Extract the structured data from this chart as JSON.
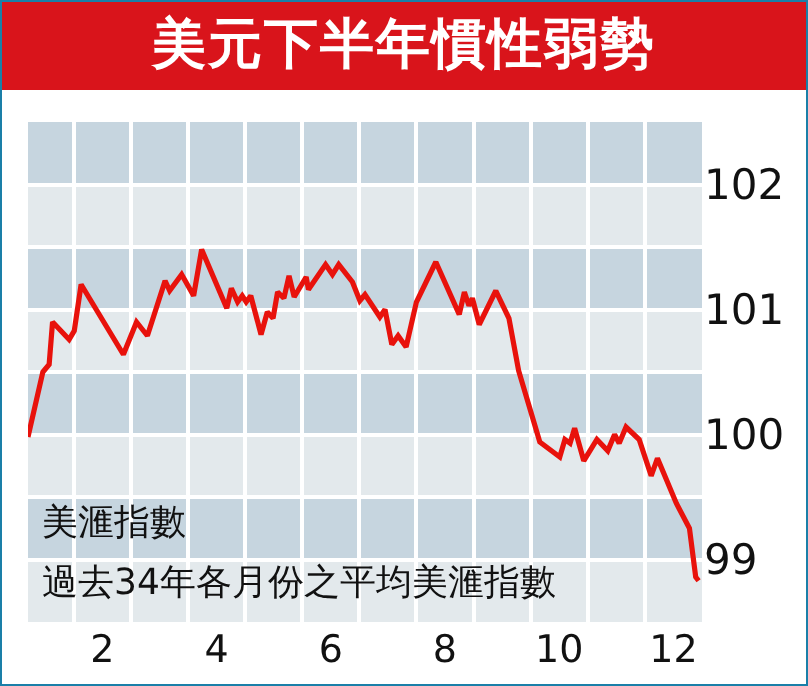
{
  "chart_data": {
    "type": "line",
    "title": "美元下半年慣性弱勢",
    "annotations": [
      "美滙指數",
      "過去34年各月份之平均美滙指數"
    ],
    "series": [
      {
        "color": "#e8120c",
        "x": [
          0.7,
          0.96,
          1.07,
          1.13,
          1.42,
          1.51,
          1.63,
          2.37,
          2.6,
          2.79,
          3.1,
          3.18,
          3.39,
          3.6,
          3.74,
          4.18,
          4.26,
          4.37,
          4.45,
          4.52,
          4.6,
          4.78,
          4.89,
          4.99,
          5.07,
          5.18,
          5.27,
          5.36,
          5.57,
          5.61,
          5.91,
          6.03,
          6.14,
          6.38,
          6.51,
          6.6,
          6.86,
          6.95,
          7.07,
          7.18,
          7.32,
          7.5,
          7.84,
          8.25,
          8.34,
          8.42,
          8.48,
          8.6,
          8.89,
          9.12,
          9.29,
          9.66,
          10.01,
          10.1,
          10.19,
          10.27,
          10.43,
          10.66,
          10.85,
          10.97,
          11.05,
          11.17,
          11.4,
          11.61,
          11.72,
          12.05,
          12.28,
          12.39,
          12.44
        ],
        "values": [
          99.98,
          100.5,
          100.56,
          100.9,
          100.76,
          100.83,
          101.2,
          100.64,
          100.9,
          100.79,
          101.23,
          101.15,
          101.28,
          101.11,
          101.48,
          101.01,
          101.17,
          101.06,
          101.11,
          101.06,
          101.11,
          100.8,
          100.98,
          100.93,
          101.14,
          101.09,
          101.27,
          101.1,
          101.26,
          101.16,
          101.36,
          101.28,
          101.36,
          101.22,
          101.07,
          101.12,
          100.94,
          101.0,
          100.72,
          100.79,
          100.7,
          101.06,
          101.38,
          100.96,
          101.14,
          101.03,
          101.09,
          100.88,
          101.15,
          100.93,
          100.51,
          99.94,
          99.82,
          99.96,
          99.93,
          100.05,
          99.79,
          99.96,
          99.87,
          100.0,
          99.93,
          100.06,
          99.96,
          99.67,
          99.81,
          99.45,
          99.25,
          98.86,
          98.83
        ]
      }
    ],
    "xlim": [
      0.7,
      12.5
    ],
    "xticks": [
      2,
      4,
      6,
      8,
      10,
      12,
      {
        "value": 1.5,
        "label": null
      },
      {
        "value": 2.5,
        "label": null
      },
      {
        "value": 3.5,
        "label": null
      },
      {
        "value": 4.5,
        "label": null
      },
      {
        "value": 5.5,
        "label": null
      },
      {
        "value": 6.5,
        "label": null
      },
      {
        "value": 7.5,
        "label": null
      },
      {
        "value": 8.5,
        "label": null
      },
      {
        "value": 9.5,
        "label": null
      },
      {
        "value": 10.5,
        "label": null
      },
      {
        "value": 11.5,
        "label": null
      }
    ],
    "ylim": [
      98.5,
      102.5
    ],
    "yticks": [
      99,
      100,
      101,
      102,
      {
        "value": 99.5,
        "label": null
      },
      {
        "value": 100.5,
        "label": null
      },
      {
        "value": 101.5,
        "label": null
      }
    ],
    "bands": [
      {
        "axis": "y",
        "from": 102,
        "to": 102.5,
        "color": "#c6d5df"
      },
      {
        "axis": "y",
        "from": 101.5,
        "to": 102,
        "color": "#e3e9ec"
      },
      {
        "axis": "y",
        "from": 101,
        "to": 101.5,
        "color": "#c6d5df"
      },
      {
        "axis": "y",
        "from": 100.5,
        "to": 101,
        "color": "#e3e9ec"
      },
      {
        "axis": "y",
        "from": 100,
        "to": 100.5,
        "color": "#c6d5df"
      },
      {
        "axis": "y",
        "from": 99.5,
        "to": 100,
        "color": "#e3e9ec"
      },
      {
        "axis": "y",
        "from": 99,
        "to": 99.5,
        "color": "#c6d5df"
      },
      {
        "axis": "y",
        "from": 98.5,
        "to": 99,
        "color": "#e3e9ec"
      }
    ],
    "grid": true,
    "marker": "none",
    "line_style": "solid"
  }
}
